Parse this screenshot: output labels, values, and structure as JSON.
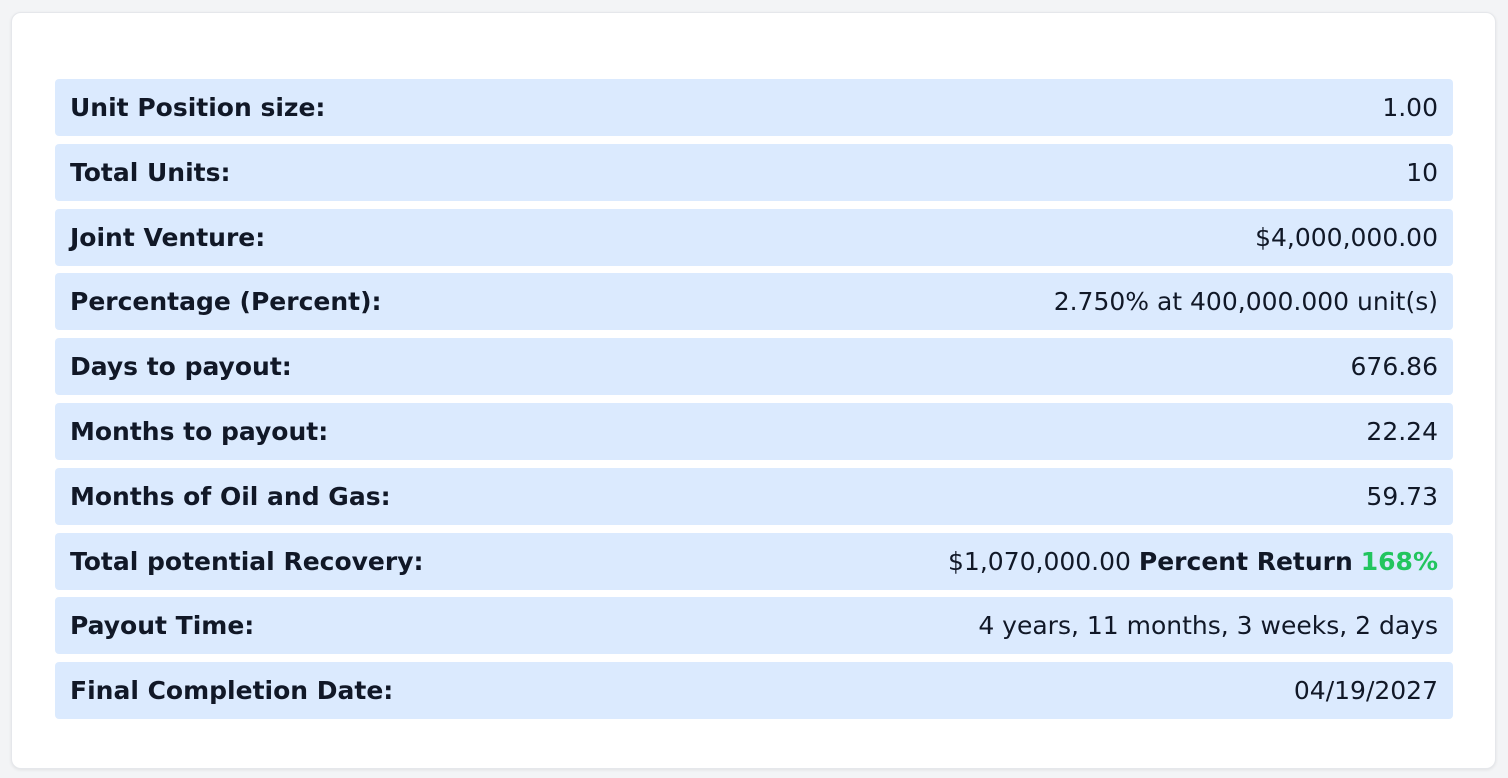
{
  "colors": {
    "row_bg": "#dbeafe",
    "positive": "#22c55e"
  },
  "rows": [
    {
      "label": "Unit Position size:",
      "value": "1.00"
    },
    {
      "label": "Total Units:",
      "value": "10"
    },
    {
      "label": "Joint Venture:",
      "value": "$4,000,000.00"
    },
    {
      "label": "Percentage (Percent):",
      "value": "2.750% at 400,000.000 unit(s)"
    },
    {
      "label": "Days to payout:",
      "value": "676.86"
    },
    {
      "label": "Months to payout:",
      "value": "22.24"
    },
    {
      "label": "Months of Oil and Gas:",
      "value": "59.73"
    },
    {
      "label": "Total potential Recovery:",
      "value": "$1,070,000.00",
      "return_label": "Percent Return",
      "return_value": "168%"
    },
    {
      "label": "Payout Time:",
      "value": "4 years, 11 months, 3 weeks, 2 days"
    },
    {
      "label": "Final Completion Date:",
      "value": "04/19/2027"
    }
  ]
}
